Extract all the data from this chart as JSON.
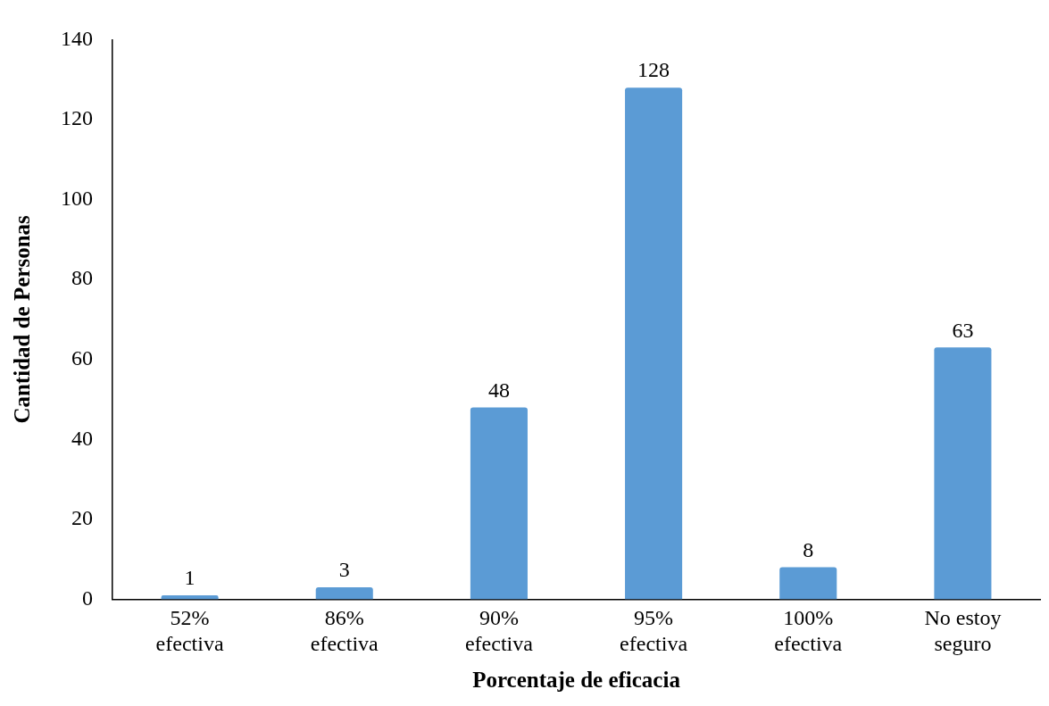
{
  "chart_data": {
    "type": "bar",
    "xlabel": "Porcentaje de eficacia",
    "ylabel": "Cantidad de Personas",
    "categories": [
      "52%\nefectiva",
      "86%\nefectiva",
      "90%\nefectiva",
      "95%\nefectiva",
      "100%\nefectiva",
      "No estoy\nseguro"
    ],
    "values": [
      1,
      3,
      48,
      128,
      8,
      63
    ],
    "color": "#5b9bd5",
    "ylim": [
      0,
      140
    ],
    "yticks": [
      0,
      20,
      40,
      60,
      80,
      100,
      120,
      140
    ],
    "grid": false,
    "legend": false,
    "data_labels": true
  }
}
